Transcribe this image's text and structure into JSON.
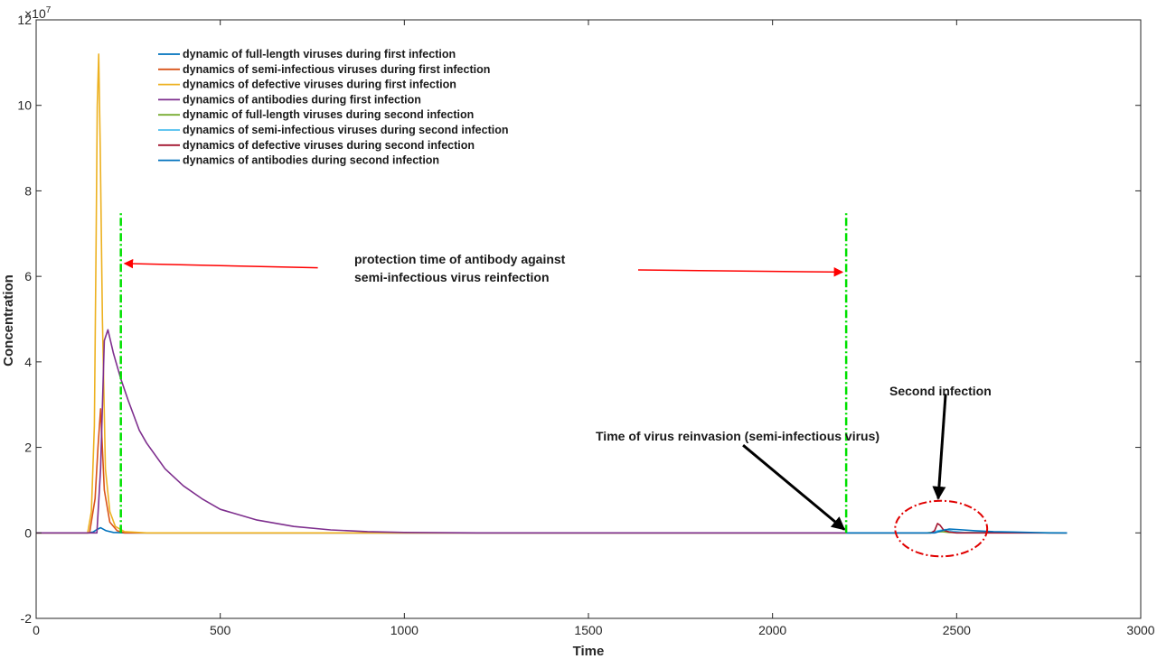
{
  "chart_data": {
    "type": "line",
    "xlabel": "Time",
    "ylabel": "Concentration",
    "y_exponent_label": "×10",
    "y_exponent_power": "7",
    "xlim": [
      0,
      3000
    ],
    "ylim": [
      -2,
      12
    ],
    "x_ticks": [
      0,
      500,
      1000,
      1500,
      2000,
      2500,
      3000
    ],
    "x_tick_labels": [
      "0",
      "500",
      "1000",
      "1500",
      "2000",
      "2500",
      "3000"
    ],
    "y_ticks": [
      -2,
      0,
      2,
      4,
      6,
      8,
      10,
      12
    ],
    "y_tick_labels": [
      "-2",
      "0",
      "2",
      "4",
      "6",
      "8",
      "10",
      "12"
    ],
    "grid": false,
    "legend_position": "top-left",
    "series": [
      {
        "name": "dynamic of full-length viruses during first infection",
        "color": "#0072BD",
        "x": [
          0,
          140,
          155,
          165,
          175,
          190,
          210,
          240,
          2200
        ],
        "y": [
          0,
          0,
          0.02,
          0.08,
          0.12,
          0.05,
          0.01,
          0,
          0
        ]
      },
      {
        "name": "dynamics of semi-infectious viruses during first infection",
        "color": "#D95319",
        "x": [
          0,
          145,
          160,
          168,
          175,
          185,
          200,
          220,
          240,
          2200
        ],
        "y": [
          0,
          0,
          0.8,
          2.0,
          2.9,
          1.0,
          0.25,
          0.05,
          0,
          0
        ]
      },
      {
        "name": "dynamics of defective viruses during first infection",
        "color": "#EDB120",
        "x": [
          0,
          140,
          150,
          158,
          163,
          166,
          170,
          174,
          180,
          188,
          200,
          215,
          240,
          300,
          2200
        ],
        "y": [
          0,
          0,
          0.5,
          2.5,
          7.0,
          10.0,
          11.2,
          9.0,
          5.0,
          1.5,
          0.5,
          0.15,
          0.03,
          0,
          0
        ]
      },
      {
        "name": "dynamics of antibodies during first infection",
        "color": "#7E2F8E",
        "x": [
          0,
          165,
          175,
          185,
          195,
          210,
          230,
          250,
          280,
          300,
          350,
          400,
          450,
          500,
          600,
          700,
          800,
          900,
          1000,
          1200,
          2200
        ],
        "y": [
          0,
          0,
          1.5,
          4.5,
          4.75,
          4.2,
          3.6,
          3.1,
          2.4,
          2.1,
          1.5,
          1.1,
          0.8,
          0.55,
          0.3,
          0.15,
          0.07,
          0.03,
          0.01,
          0,
          0
        ]
      },
      {
        "name": "dynamic of full-length viruses during second infection",
        "color": "#77AC30",
        "x": [
          2200,
          2420,
          2440,
          2460,
          2480,
          2800
        ],
        "y": [
          0,
          0,
          0.02,
          0.03,
          0.01,
          0
        ]
      },
      {
        "name": "dynamics of semi-infectious viruses during second infection",
        "color": "#4DBEEE",
        "x": [
          2200,
          2430,
          2450,
          2470,
          2490,
          2520,
          2800
        ],
        "y": [
          0,
          0,
          0.05,
          0.08,
          0.04,
          0.01,
          0
        ]
      },
      {
        "name": "dynamics of defective viruses during second infection",
        "color": "#A2142F",
        "x": [
          2200,
          2430,
          2440,
          2448,
          2455,
          2465,
          2480,
          2500,
          2800
        ],
        "y": [
          0,
          0,
          0.05,
          0.22,
          0.18,
          0.06,
          0.02,
          0,
          0
        ]
      },
      {
        "name": "dynamics of antibodies during second infection",
        "color": "#0072BD",
        "x": [
          2200,
          2440,
          2460,
          2480,
          2500,
          2550,
          2600,
          2650,
          2700,
          2750,
          2800
        ],
        "y": [
          0,
          0,
          0.05,
          0.09,
          0.08,
          0.05,
          0.03,
          0.02,
          0.01,
          0,
          0
        ]
      }
    ],
    "vertical_markers": [
      {
        "x": 230,
        "y_top": 7.5,
        "color": "#00e000"
      },
      {
        "x": 2200,
        "y_top": 7.5,
        "color": "#00e000"
      }
    ],
    "annotations": {
      "protection": {
        "line1": "protection time of antibody against",
        "line2": "semi-infectious virus reinfection",
        "anchor": [
          1720,
          6.25
        ],
        "arrow_left": {
          "from": [
            765,
            6.2
          ],
          "to": [
            240,
            6.3
          ]
        },
        "arrow_right": {
          "from": [
            1635,
            6.15
          ],
          "to": [
            2190,
            6.1
          ]
        }
      },
      "reinvasion": {
        "text": "Time of virus reinvasion  (semi-infectious virus)",
        "anchor": [
          1525,
          2.2
        ],
        "arrow": {
          "from": [
            1920,
            2.05
          ],
          "to": [
            2195,
            0.08
          ]
        }
      },
      "second": {
        "text": "Second infection",
        "anchor": [
          2335,
          3.3
        ],
        "arrow": {
          "from": [
            2470,
            3.25
          ],
          "to": [
            2450,
            0.8
          ]
        },
        "ellipse": {
          "cx": 2458,
          "cy": 0.1,
          "rx": 125,
          "ry": 0.65
        }
      }
    },
    "colors": {
      "arrow_red": "#ff0000",
      "arrow_black": "#000000",
      "ellipse": "#e00000",
      "axis": "#262626"
    }
  }
}
